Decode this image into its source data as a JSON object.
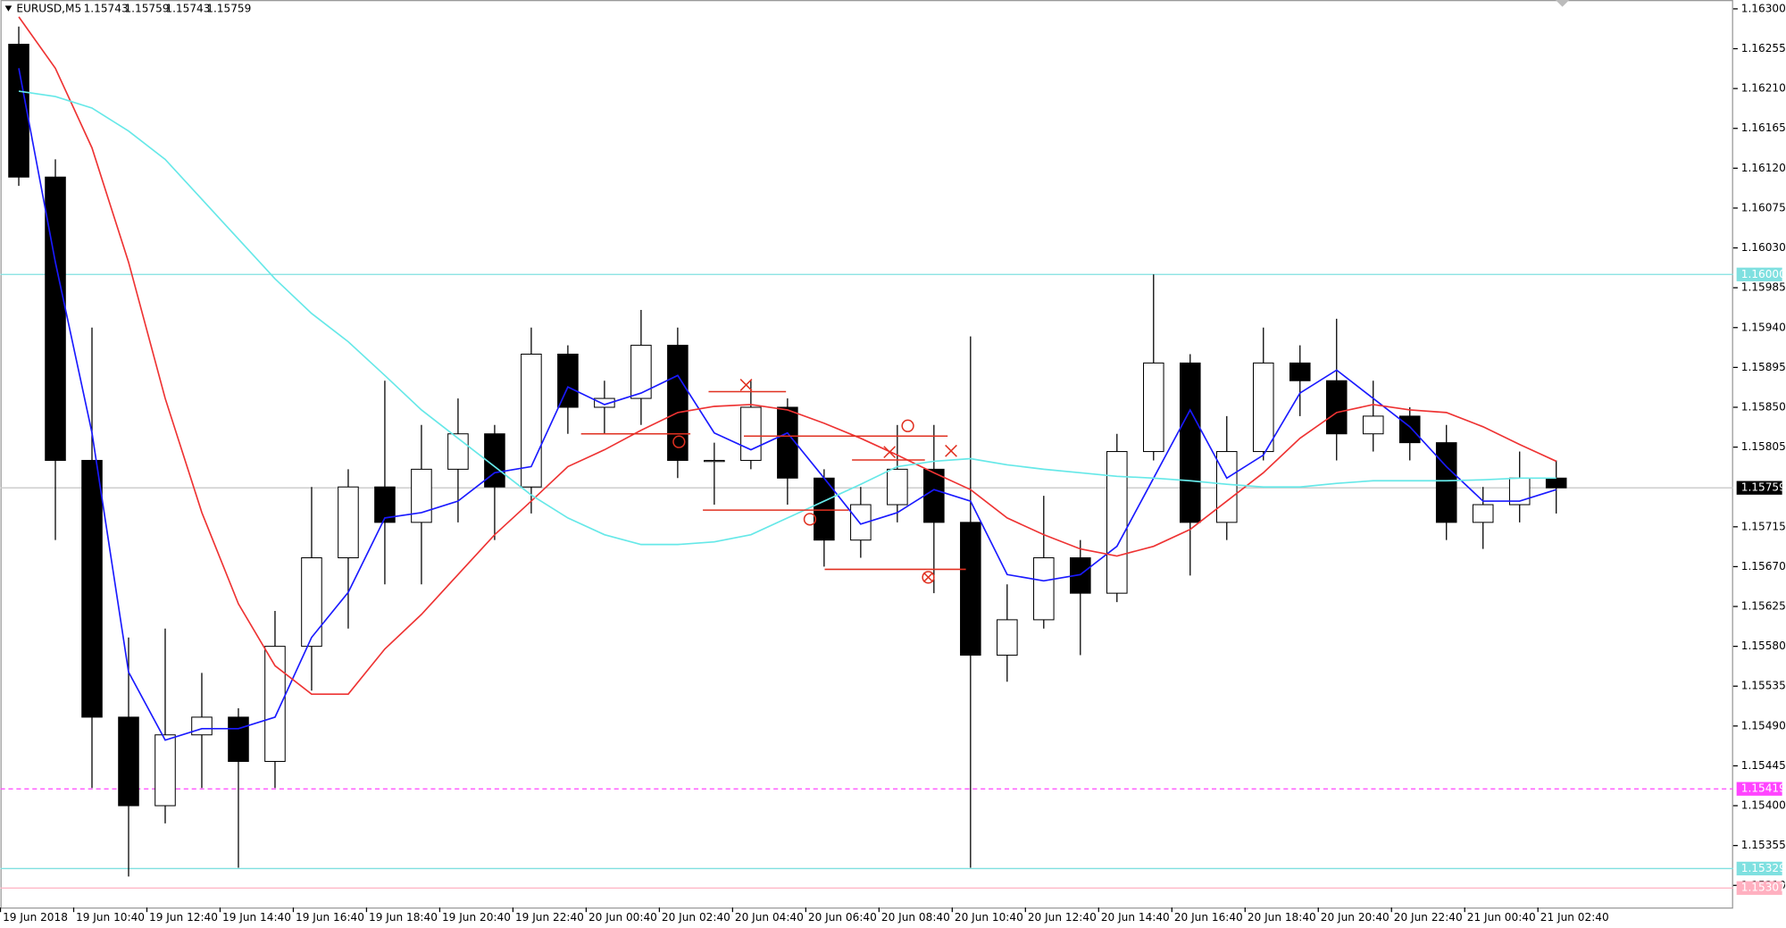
{
  "header": {
    "symbol": "EURUSD,M5",
    "open": 1.15743,
    "high": 1.15759,
    "low": 1.15743,
    "close": 1.15759
  },
  "chart_data": {
    "type": "candlestick",
    "x": [
      0,
      12,
      24,
      36,
      48,
      60,
      72,
      84,
      96,
      108,
      120,
      132,
      144,
      156,
      168,
      180,
      192,
      204,
      216,
      228,
      240,
      252,
      264,
      276,
      288,
      300,
      312,
      324,
      336,
      348,
      360,
      372,
      384,
      396,
      408,
      420,
      432,
      444,
      456,
      468,
      480,
      492,
      504
    ],
    "open": [
      1.1626,
      1.1611,
      1.1579,
      1.155,
      1.154,
      1.1548,
      1.155,
      1.1545,
      1.1558,
      1.1568,
      1.1576,
      1.1572,
      1.1578,
      1.1582,
      1.1576,
      1.1591,
      1.1585,
      1.1586,
      1.1592,
      1.1579,
      1.1579,
      1.1585,
      1.1577,
      1.157,
      1.1574,
      1.1578,
      1.1572,
      1.1557,
      1.1561,
      1.1568,
      1.1564,
      1.158,
      1.159,
      1.1572,
      1.158,
      1.159,
      1.1588,
      1.1582,
      1.1584,
      1.1581,
      1.1572,
      1.1574,
      1.1577
    ],
    "high": [
      1.1628,
      1.1613,
      1.1594,
      1.1559,
      1.156,
      1.1555,
      1.1551,
      1.1562,
      1.1576,
      1.1578,
      1.1588,
      1.1583,
      1.1586,
      1.1583,
      1.1594,
      1.1592,
      1.1588,
      1.1596,
      1.1594,
      1.1581,
      1.1588,
      1.1586,
      1.1578,
      1.1576,
      1.1583,
      1.1583,
      1.1593,
      1.1565,
      1.1575,
      1.157,
      1.1582,
      1.16,
      1.1591,
      1.1584,
      1.1594,
      1.1592,
      1.1595,
      1.1588,
      1.1585,
      1.1583,
      1.1576,
      1.158,
      1.1579
    ],
    "low": [
      1.161,
      1.157,
      1.1542,
      1.1532,
      1.1538,
      1.1542,
      1.1533,
      1.1542,
      1.1553,
      1.156,
      1.1565,
      1.1565,
      1.1572,
      1.157,
      1.1573,
      1.1582,
      1.1582,
      1.1583,
      1.1577,
      1.1574,
      1.1578,
      1.1574,
      1.1567,
      1.1568,
      1.1572,
      1.1564,
      1.1533,
      1.1554,
      1.156,
      1.1557,
      1.1563,
      1.1579,
      1.1566,
      1.157,
      1.1579,
      1.1584,
      1.1579,
      1.158,
      1.1579,
      1.157,
      1.1569,
      1.1572,
      1.1573
    ],
    "close": [
      1.1611,
      1.1579,
      1.155,
      1.154,
      1.1548,
      1.155,
      1.1545,
      1.1558,
      1.1568,
      1.1576,
      1.1572,
      1.1578,
      1.1582,
      1.1576,
      1.1591,
      1.1585,
      1.1586,
      1.1592,
      1.1579,
      1.1579,
      1.1585,
      1.1577,
      1.157,
      1.1574,
      1.1578,
      1.1572,
      1.1557,
      1.1561,
      1.1568,
      1.1564,
      1.158,
      1.159,
      1.1572,
      1.158,
      1.159,
      1.1588,
      1.1582,
      1.1584,
      1.1581,
      1.1572,
      1.1574,
      1.1577,
      1.15759
    ],
    "lines": [
      {
        "color": "#1a1aff",
        "values": [
          1.16233,
          1.16014,
          1.15821,
          1.15551,
          1.15474,
          1.15487,
          1.15487,
          1.155,
          1.1559,
          1.15641,
          1.15725,
          1.15731,
          1.15744,
          1.15776,
          1.15783,
          1.15873,
          1.15853,
          1.15866,
          1.15886,
          1.15821,
          1.15802,
          1.15821,
          1.1577,
          1.15718,
          1.15731,
          1.15757,
          1.15744,
          1.15661,
          1.15654,
          1.15661,
          1.15693,
          1.1577,
          1.15847,
          1.1577,
          1.15796,
          1.15866,
          1.15892,
          1.1586,
          1.15828,
          1.15783,
          1.15744,
          1.15744,
          1.15757
        ]
      },
      {
        "color": "#ee3333",
        "values": [
          1.16291,
          1.16233,
          1.16143,
          1.16014,
          1.1586,
          1.15731,
          1.15628,
          1.15558,
          1.15526,
          1.15526,
          1.15577,
          1.15616,
          1.15661,
          1.15706,
          1.15744,
          1.15783,
          1.15802,
          1.15824,
          1.15844,
          1.15851,
          1.15853,
          1.15847,
          1.15832,
          1.15815,
          1.15796,
          1.15776,
          1.15757,
          1.15725,
          1.15706,
          1.1569,
          1.15682,
          1.15693,
          1.15712,
          1.15744,
          1.15776,
          1.15815,
          1.15844,
          1.15853,
          1.15847,
          1.15844,
          1.15828,
          1.15808,
          1.15789
        ]
      },
      {
        "color": "#66e8e8",
        "values": [
          1.16207,
          1.16201,
          1.16188,
          1.16162,
          1.1613,
          1.16085,
          1.1604,
          1.15995,
          1.15956,
          1.15924,
          1.15886,
          1.15847,
          1.15815,
          1.15783,
          1.15751,
          1.15725,
          1.15706,
          1.15695,
          1.15695,
          1.15698,
          1.15706,
          1.15725,
          1.15744,
          1.15763,
          1.15783,
          1.15789,
          1.15792,
          1.15785,
          1.1578,
          1.15776,
          1.15772,
          1.1577,
          1.15767,
          1.15763,
          1.1576,
          1.1576,
          1.15764,
          1.15767,
          1.15767,
          1.15767,
          1.15768,
          1.1577,
          1.1577
        ]
      }
    ],
    "xlim": [
      0,
      568
    ],
    "ylim": [
      1.15285,
      1.1631
    ],
    "xticks": [
      {
        "value": 0,
        "label": "19 Jun 2018"
      },
      {
        "value": 24,
        "label": "19 Jun 10:40"
      },
      {
        "value": 48,
        "label": "19 Jun 12:40"
      },
      {
        "value": 72,
        "label": "19 Jun 14:40"
      },
      {
        "value": 96,
        "label": "19 Jun 16:40"
      },
      {
        "value": 120,
        "label": "19 Jun 18:40"
      },
      {
        "value": 144,
        "label": "19 Jun 20:40"
      },
      {
        "value": 168,
        "label": "19 Jun 22:40"
      },
      {
        "value": 192,
        "label": "20 Jun 00:40"
      },
      {
        "value": 216,
        "label": "20 Jun 02:40"
      },
      {
        "value": 240,
        "label": "20 Jun 04:40"
      },
      {
        "value": 264,
        "label": "20 Jun 06:40"
      },
      {
        "value": 288,
        "label": "20 Jun 08:40"
      },
      {
        "value": 312,
        "label": "20 Jun 10:40"
      },
      {
        "value": 336,
        "label": "20 Jun 12:40"
      },
      {
        "value": 360,
        "label": "20 Jun 14:40"
      },
      {
        "value": 384,
        "label": "20 Jun 16:40"
      },
      {
        "value": 408,
        "label": "20 Jun 18:40"
      },
      {
        "value": 432,
        "label": "20 Jun 20:40"
      },
      {
        "value": 456,
        "label": "20 Jun 22:40"
      },
      {
        "value": 480,
        "label": "21 Jun 00:40"
      },
      {
        "value": 504,
        "label": "21 Jun 02:40"
      }
    ],
    "yticks": [
      {
        "value": 1.163,
        "label": "1.16300"
      },
      {
        "value": 1.16255,
        "label": "1.16255"
      },
      {
        "value": 1.1621,
        "label": "1.16210"
      },
      {
        "value": 1.16165,
        "label": "1.16165"
      },
      {
        "value": 1.1612,
        "label": "1.16120"
      },
      {
        "value": 1.16075,
        "label": "1.16075"
      },
      {
        "value": 1.1603,
        "label": "1.16030"
      },
      {
        "value": 1.15985,
        "label": "1.15985"
      },
      {
        "value": 1.1594,
        "label": "1.15940"
      },
      {
        "value": 1.15895,
        "label": "1.15895"
      },
      {
        "value": 1.1585,
        "label": "1.15850"
      },
      {
        "value": 1.15805,
        "label": "1.15805"
      },
      {
        "value": 1.15715,
        "label": "1.15715"
      },
      {
        "value": 1.1567,
        "label": "1.15670"
      },
      {
        "value": 1.15625,
        "label": "1.15625"
      },
      {
        "value": 1.1558,
        "label": "1.15580"
      },
      {
        "value": 1.15535,
        "label": "1.15535"
      },
      {
        "value": 1.1549,
        "label": "1.15490"
      },
      {
        "value": 1.15445,
        "label": "1.15445"
      },
      {
        "value": 1.154,
        "label": "1.15400"
      },
      {
        "value": 1.15355,
        "label": "1.15355"
      },
      {
        "value": 1.1531,
        "label": "1.15310"
      }
    ],
    "levels": [
      {
        "value": 1.15307,
        "color": "#ffb0c0",
        "dash": false
      },
      {
        "value": 1.16,
        "label": "1.16000",
        "color": "#7fe0e0",
        "dash": false
      },
      {
        "value": 1.15419,
        "color": "#ff44ff",
        "dash": true
      },
      {
        "value": 1.15329,
        "color": "#7fe0e0",
        "dash": false
      }
    ],
    "price": 1.15759,
    "bull_color": "#ffffff",
    "bear_color": "#000000"
  }
}
